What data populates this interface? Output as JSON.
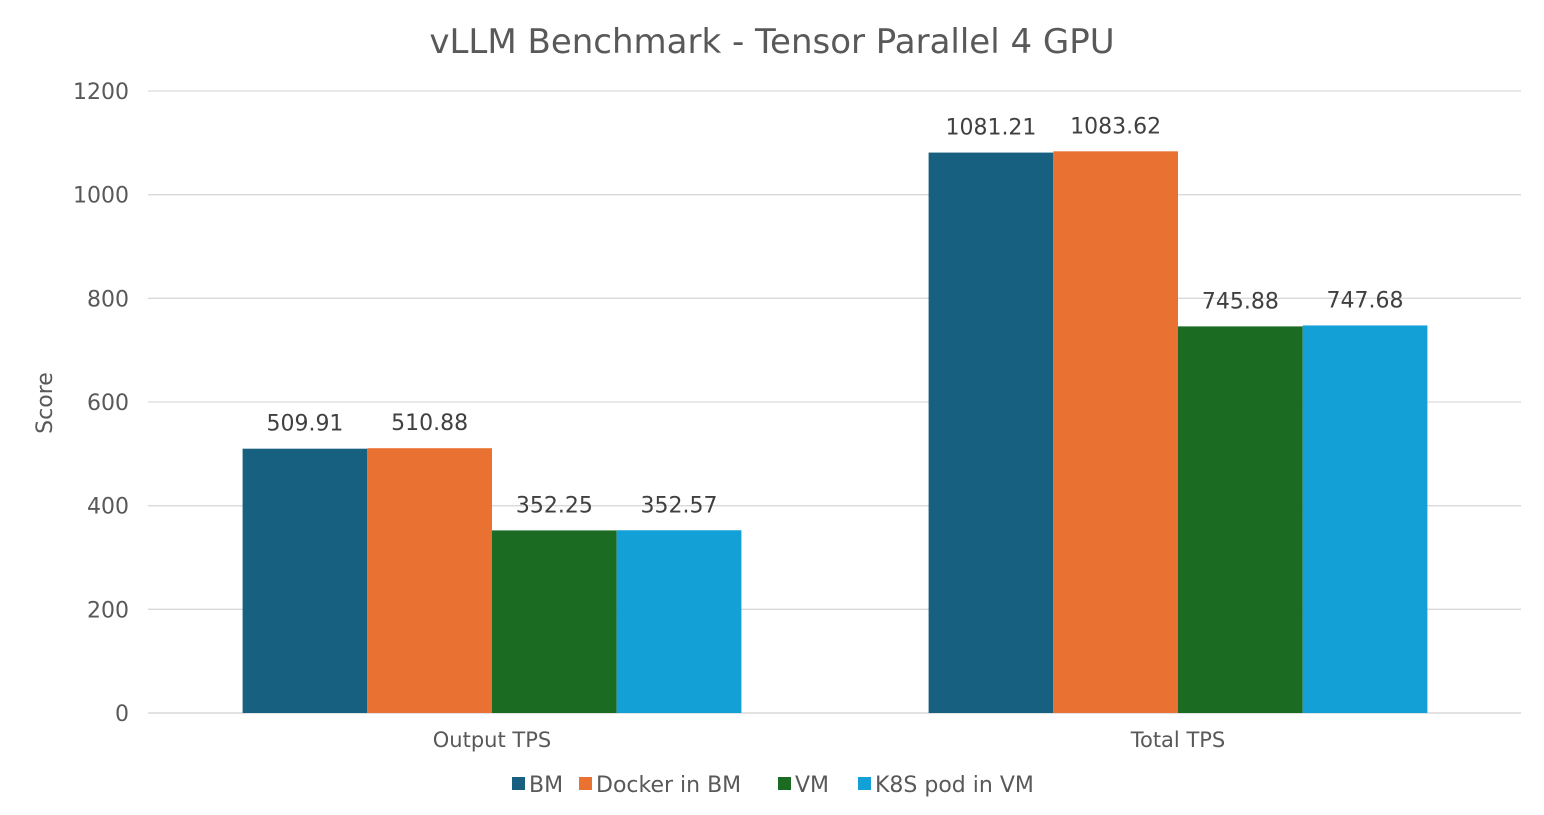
{
  "chart_data": {
    "type": "bar",
    "title": "vLLM Benchmark - Tensor Parallel 4 GPU",
    "xlabel": "",
    "ylabel": "Score",
    "ylim": [
      0,
      1200
    ],
    "yticks": [
      0,
      200,
      400,
      600,
      800,
      1000,
      1200
    ],
    "grid": true,
    "legend_position": "bottom",
    "categories": [
      "Output TPS",
      "Total TPS"
    ],
    "series": [
      {
        "name": "BM",
        "color": "#17607f",
        "values": [
          509.91,
          1081.21
        ],
        "labels": [
          "509.91",
          "1081.21"
        ]
      },
      {
        "name": "Docker in BM",
        "color": "#e97132",
        "values": [
          510.88,
          1083.62
        ],
        "labels": [
          "510.88",
          "1083.62"
        ]
      },
      {
        "name": "VM",
        "color": "#1c6b23",
        "values": [
          352.25,
          745.88
        ],
        "labels": [
          "352.25",
          "745.88"
        ]
      },
      {
        "name": "K8S pod in VM",
        "color": "#12a0d7",
        "values": [
          352.57,
          747.68
        ],
        "labels": [
          "352.57",
          "747.68"
        ]
      }
    ]
  }
}
